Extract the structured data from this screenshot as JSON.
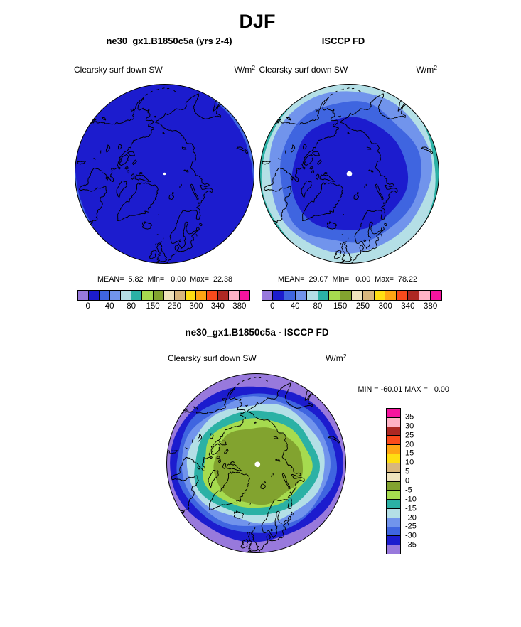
{
  "title": "DJF",
  "panels": {
    "model": {
      "title": "ne30_gx1.B1850c5a (yrs 2-4)",
      "field": "Clearsky surf down SW",
      "units_base": "W/m",
      "units_exp": "2",
      "stats": "MEAN=  5.82  Min=   0.00  Max=  22.38"
    },
    "obs": {
      "title": "ISCCP FD",
      "field": "Clearsky surf down SW",
      "units_base": "W/m",
      "units_exp": "2",
      "stats": "MEAN=  29.07  Min=   0.00  Max=  78.22"
    },
    "diff": {
      "title": "ne30_gx1.B1850c5a - ISCCP FD",
      "field": "Clearsky surf down SW",
      "units_base": "W/m",
      "units_exp": "2",
      "minmax": "MIN = -60.01 MAX =   0.00"
    }
  },
  "palette": [
    "#9879DC",
    "#1C1CCE",
    "#3F65E0",
    "#7194EC",
    "#B4DFE6",
    "#2BB1A5",
    "#A6DB4F",
    "#82A32F",
    "#EFE3BD",
    "#D8B67D",
    "#FFDE12",
    "#FFA514",
    "#FB4B1C",
    "#AE2823",
    "#FFB2C5",
    "#F6149E"
  ],
  "colorbar": {
    "colors": [
      "#9879DC",
      "#1C1CCE",
      "#3F65E0",
      "#7194EC",
      "#B4DFE6",
      "#2BB1A5",
      "#A6DB4F",
      "#82A32F",
      "#EFE3BD",
      "#D8B67D",
      "#FFDE12",
      "#FFA514",
      "#FB4B1C",
      "#AE2823",
      "#FFB2C5",
      "#F6149E"
    ],
    "tick_labels": [
      "0",
      "40",
      "80",
      "150",
      "250",
      "300",
      "340",
      "380"
    ]
  },
  "diff_colorbar": {
    "colors": [
      "#F6149E",
      "#FFB2C5",
      "#AE2823",
      "#FB4B1C",
      "#FFA514",
      "#FFDE12",
      "#D8B67D",
      "#EFE3BD",
      "#82A32F",
      "#A6DB4F",
      "#2BB1A5",
      "#B4DFE6",
      "#7194EC",
      "#3F65E0",
      "#1C1CCE",
      "#9879DC"
    ],
    "tick_labels": [
      "35",
      "30",
      "25",
      "20",
      "15",
      "10",
      "5",
      "0",
      "-5",
      "-10",
      "-15",
      "-20",
      "-25",
      "-30",
      "-35"
    ]
  },
  "chart_data": [
    {
      "type": "heatmap",
      "subtype": "north-polar-stereographic-contour-map",
      "season": "DJF",
      "title": "ne30_gx1.B1850c5a (yrs 2-4)",
      "variable": "Clearsky surf down SW",
      "units": "W/m2",
      "map_boundary_lat": 50,
      "stats": {
        "mean": 5.82,
        "min": 0.0,
        "max": 22.38
      },
      "colorbar_tick_labels": [
        0,
        40,
        80,
        150,
        250,
        300,
        340,
        380
      ],
      "field_by_latitude": [
        {
          "band": "pole to ~52N",
          "value_w_m2": "0-20",
          "color": "#1C1CCE"
        },
        {
          "band": "~50-52N rim, ESE and WSW sectors",
          "value_w_m2": "20-40",
          "color": "#3F65E0"
        }
      ]
    },
    {
      "type": "heatmap",
      "subtype": "north-polar-stereographic-contour-map",
      "season": "DJF",
      "title": "ISCCP FD",
      "variable": "Clearsky surf down SW",
      "units": "W/m2",
      "map_boundary_lat": 50,
      "stats": {
        "mean": 29.07,
        "min": 0.0,
        "max": 78.22
      },
      "colorbar_tick_labels": [
        0,
        40,
        80,
        150,
        250,
        300,
        340,
        380
      ],
      "field_by_latitude": [
        {
          "band": "pole to ~64N",
          "value_w_m2": "0-20",
          "color": "#1C1CCE"
        },
        {
          "band": "~59-64N",
          "value_w_m2": "20-40",
          "color": "#3F65E0"
        },
        {
          "band": "~54-59N",
          "value_w_m2": "40-60",
          "color": "#7194EC"
        },
        {
          "band": "~50-54N",
          "value_w_m2": "60-80",
          "color": "#B4DFE6"
        },
        {
          "band": "50N rim, E and W sectors",
          "value_w_m2": "80-100",
          "color": "#2BB1A5"
        }
      ]
    },
    {
      "type": "heatmap",
      "subtype": "north-polar-stereographic-contour-map",
      "season": "DJF",
      "title": "ne30_gx1.B1850c5a - ISCCP FD",
      "variable": "Clearsky surf down SW",
      "units": "W/m2",
      "map_boundary_lat": 50,
      "stats": {
        "min": -60.01,
        "max": 0.0
      },
      "colorbar_tick_labels": [
        35,
        30,
        25,
        20,
        15,
        10,
        5,
        0,
        -5,
        -10,
        -15,
        -20,
        -25,
        -30,
        -35
      ],
      "field_by_latitude": [
        {
          "band": "pole to ~73N",
          "value_w_m2": "-5-0",
          "color": "#82A32F"
        },
        {
          "band": "~70-73N",
          "value_w_m2": "-10--5",
          "color": "#A6DB4F"
        },
        {
          "band": "~67-70N",
          "value_w_m2": "-15--10",
          "color": "#2BB1A5"
        },
        {
          "band": "~64-67N",
          "value_w_m2": "-20--15",
          "color": "#B4DFE6"
        },
        {
          "band": "~62-64N",
          "value_w_m2": "-25--20",
          "color": "#7194EC"
        },
        {
          "band": "~60-62N",
          "value_w_m2": "-30--25",
          "color": "#3F65E0"
        },
        {
          "band": "~57-60N",
          "value_w_m2": "-35--30",
          "color": "#1C1CCE"
        },
        {
          "band": "south of ~57N",
          "value_w_m2": "< -35",
          "color": "#9879DC"
        }
      ]
    }
  ]
}
